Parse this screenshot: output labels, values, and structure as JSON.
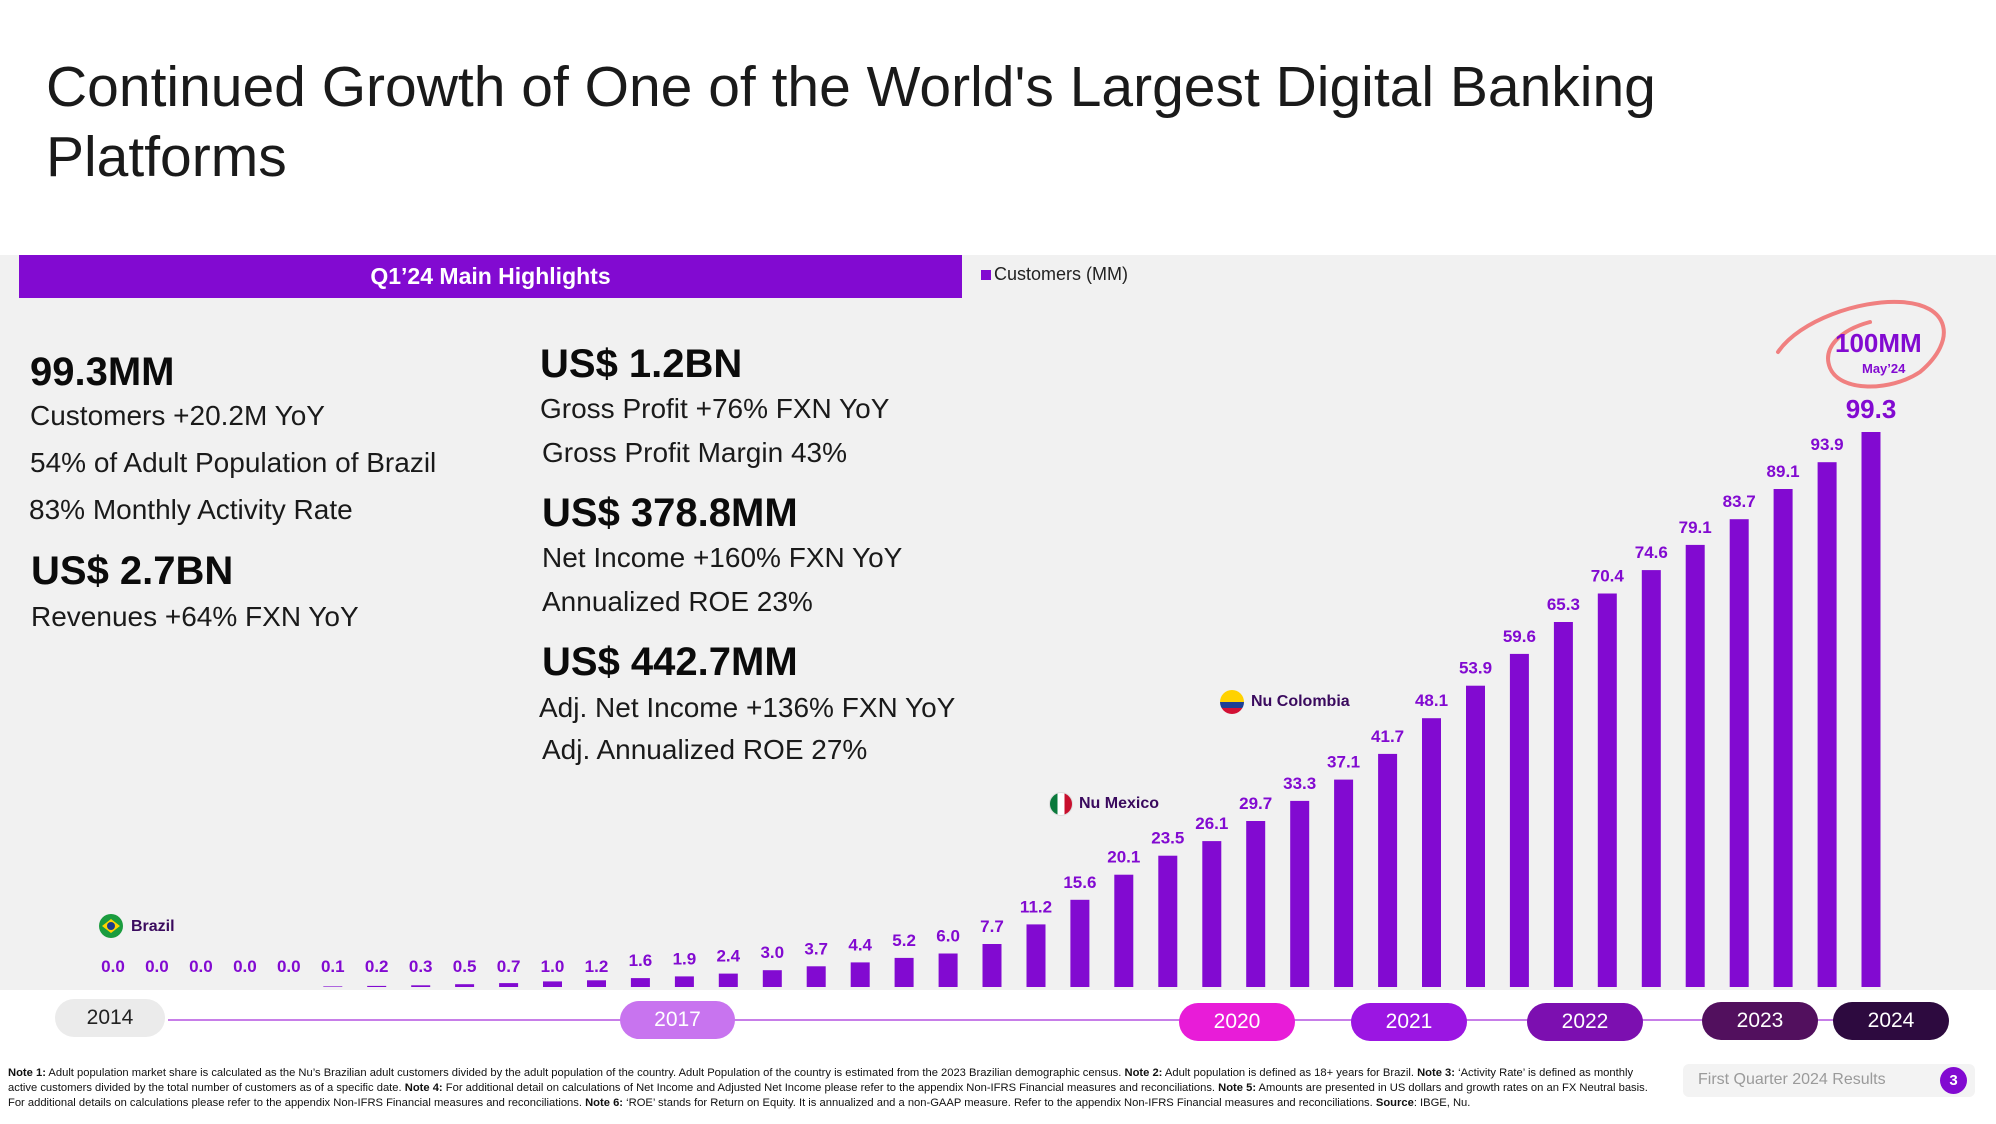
{
  "title": "Continued Growth of One of the World's Largest Digital Banking Platforms",
  "highlights": {
    "bar_label": "Q1’24 Main Highlights",
    "customers": {
      "value": "99.3MM",
      "lines": [
        "Customers +20.2M YoY",
        "54% of Adult Population of Brazil",
        "83% Monthly Activity Rate"
      ]
    },
    "revenues": {
      "value": "US$ 2.7BN",
      "lines": [
        "Revenues +64%  FXN YoY"
      ]
    },
    "gross_profit": {
      "value": "US$ 1.2BN",
      "lines": [
        "Gross Profit +76%  FXN YoY",
        "Gross Profit Margin 43%"
      ]
    },
    "net_income": {
      "value": "US$ 378.8MM",
      "lines": [
        "Net Income +160% FXN YoY",
        "Annualized ROE 23%"
      ]
    },
    "adj_net_income": {
      "value": "US$ 442.7MM",
      "lines": [
        "Adj. Net Income +136% FXN YoY",
        "Adj. Annualized ROE 27%"
      ]
    }
  },
  "chart_data": {
    "type": "bar",
    "series": [
      {
        "name": "Customers (MM)",
        "values": [
          0.0,
          0.0,
          0.0,
          0.0,
          0.0,
          0.1,
          0.2,
          0.3,
          0.5,
          0.7,
          1.0,
          1.2,
          1.6,
          1.9,
          2.4,
          3.0,
          3.7,
          4.4,
          5.2,
          6.0,
          7.7,
          11.2,
          15.6,
          20.1,
          23.5,
          26.1,
          29.7,
          33.3,
          37.1,
          41.7,
          48.1,
          53.9,
          59.6,
          65.3,
          70.4,
          74.6,
          79.1,
          83.7,
          89.1,
          93.9,
          99.3
        ],
        "labels": [
          "0.0",
          "0.0",
          "0.0",
          "0.0",
          "0.0",
          "0.1",
          "0.2",
          "0.3",
          "0.5",
          "0.7",
          "1.0",
          "1.2",
          "1.6",
          "1.9",
          "2.4",
          "3.0",
          "3.7",
          "4.4",
          "5.2",
          "6.0",
          "7.7",
          "11.2",
          "15.6",
          "20.1",
          "23.5",
          "26.1",
          "29.7",
          "33.3",
          "37.1",
          "41.7",
          "48.1",
          "53.9",
          "59.6",
          "65.3",
          "70.4",
          "74.6",
          "79.1",
          "83.7",
          "89.1",
          "93.9",
          "99.3"
        ]
      }
    ],
    "legend": "top-left",
    "color": "#820ad1",
    "timeline_years": [
      "2014",
      "2017",
      "2020",
      "2021",
      "2022",
      "2023",
      "2024"
    ],
    "annotations": {
      "milestone_value": "100MM",
      "milestone_date": "May’24",
      "brazil": "Brazil",
      "mexico": "Nu Mexico",
      "colombia": "Nu Colombia"
    }
  },
  "colors": {
    "brand": "#820ad1",
    "pill_2014": "#ebebeb",
    "pill_2017": "#c874ef",
    "pill_2020": "#e81cd8",
    "pill_2021": "#9b16e2",
    "pill_2022": "#7c0fb0",
    "pill_2023": "#52105e",
    "pill_2024": "#2d0a3f",
    "callout_ring": "#f08080"
  },
  "footnotes": [
    {
      "label": "Note 1:",
      "text": " Adult population market share is calculated as the Nu’s Brazilian adult customers divided by the adult population of the country. Adult Population of the country is estimated from the 2023 Brazilian demographic census. "
    },
    {
      "label": "Note 2:",
      "text": " Adult population is defined as 18+ years for Brazil. "
    },
    {
      "label": "Note 3:",
      "text": " ‘Activity Rate’ is defined as monthly active customers divided by the total number of customers as of a specific date. "
    },
    {
      "label": "Note 4:",
      "text": " For additional detail on calculations of Net Income and Adjusted Net Income please refer to the appendix Non-IFRS Financial measures and reconciliations. "
    },
    {
      "label": "Note 5:",
      "text": " Amounts are presented in US dollars and growth rates on an FX Neutral basis. For additional details on calculations please refer to the appendix Non-IFRS Financial measures and reconciliations. "
    },
    {
      "label": "Note 6:",
      "text": " ‘ROE’ stands for Return on Equity. It is annualized and a non-GAAP measure. Refer to the appendix Non-IFRS Financial measures and reconciliations. "
    },
    {
      "label": "Source",
      "text": ": IBGE, Nu."
    }
  ],
  "footer": {
    "text": "First Quarter 2024 Results",
    "page": "3"
  }
}
